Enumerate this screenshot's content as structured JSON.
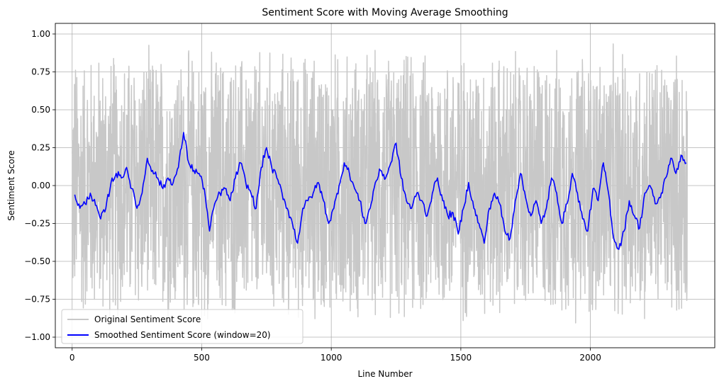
{
  "chart_data": {
    "type": "line",
    "title": "Sentiment Score with Moving Average Smoothing",
    "xlabel": "Line Number",
    "ylabel": "Sentiment Score",
    "xlim": [
      -65,
      2480
    ],
    "ylim": [
      -1.07,
      1.07
    ],
    "xticks": [
      0,
      500,
      1000,
      1500,
      2000
    ],
    "yticks": [
      -1.0,
      -0.75,
      -0.5,
      -0.25,
      0.0,
      0.25,
      0.5,
      0.75,
      1.0
    ],
    "xtick_labels": [
      "0",
      "500",
      "1000",
      "1500",
      "2000"
    ],
    "ytick_labels": [
      "−1.00",
      "−0.75",
      "−0.50",
      "−0.25",
      "0.00",
      "0.25",
      "0.50",
      "0.75",
      "1.00"
    ],
    "grid": true,
    "legend_position": "lower-left",
    "series": [
      {
        "name": "Original Sentiment Score",
        "color": "#c8c8c8",
        "n_points": 2375,
        "value_range": [
          -0.97,
          0.96
        ]
      },
      {
        "name": "Smoothed Sentiment Score (window=20)",
        "color": "#0000ff",
        "window": 20,
        "x": [
          10,
          30,
          50,
          70,
          90,
          110,
          130,
          150,
          170,
          190,
          210,
          230,
          250,
          270,
          290,
          310,
          330,
          350,
          370,
          390,
          410,
          430,
          450,
          470,
          490,
          510,
          530,
          550,
          570,
          590,
          610,
          630,
          650,
          670,
          690,
          710,
          730,
          750,
          770,
          790,
          810,
          830,
          850,
          870,
          890,
          910,
          930,
          950,
          970,
          990,
          1010,
          1030,
          1050,
          1070,
          1090,
          1110,
          1130,
          1150,
          1170,
          1190,
          1210,
          1230,
          1250,
          1270,
          1290,
          1310,
          1330,
          1350,
          1370,
          1390,
          1410,
          1430,
          1450,
          1470,
          1490,
          1510,
          1530,
          1550,
          1570,
          1590,
          1610,
          1630,
          1650,
          1670,
          1690,
          1710,
          1730,
          1750,
          1770,
          1790,
          1810,
          1830,
          1850,
          1870,
          1890,
          1910,
          1930,
          1950,
          1970,
          1990,
          2010,
          2030,
          2050,
          2070,
          2090,
          2110,
          2130,
          2150,
          2170,
          2190,
          2210,
          2230,
          2250,
          2270,
          2290,
          2310,
          2330,
          2350,
          2370
        ],
        "values": [
          -0.06,
          -0.15,
          -0.12,
          -0.05,
          -0.13,
          -0.22,
          -0.15,
          0.02,
          0.08,
          0.05,
          0.12,
          -0.02,
          -0.15,
          -0.05,
          0.18,
          0.1,
          0.05,
          -0.02,
          0.05,
          0.02,
          0.12,
          0.35,
          0.15,
          0.1,
          0.08,
          -0.02,
          -0.3,
          -0.12,
          -0.05,
          -0.02,
          -0.1,
          0.05,
          0.15,
          0.02,
          -0.05,
          -0.15,
          0.12,
          0.25,
          0.12,
          0.05,
          -0.05,
          -0.15,
          -0.25,
          -0.38,
          -0.15,
          -0.1,
          -0.05,
          0.02,
          -0.1,
          -0.25,
          -0.15,
          0.0,
          0.15,
          0.08,
          -0.02,
          -0.1,
          -0.25,
          -0.15,
          0.02,
          0.1,
          0.05,
          0.15,
          0.28,
          0.05,
          -0.1,
          -0.15,
          -0.05,
          -0.1,
          -0.2,
          -0.05,
          0.05,
          -0.1,
          -0.2,
          -0.18,
          -0.32,
          -0.15,
          0.02,
          -0.15,
          -0.25,
          -0.38,
          -0.15,
          -0.05,
          -0.12,
          -0.3,
          -0.35,
          -0.1,
          0.08,
          -0.08,
          -0.2,
          -0.1,
          -0.25,
          -0.15,
          0.05,
          -0.05,
          -0.25,
          -0.12,
          0.08,
          -0.05,
          -0.22,
          -0.3,
          -0.02,
          -0.1,
          0.15,
          -0.05,
          -0.35,
          -0.42,
          -0.3,
          -0.1,
          -0.2,
          -0.28,
          -0.05,
          0.0,
          -0.12,
          -0.08,
          0.05,
          0.18,
          0.08,
          0.2,
          0.15
        ]
      }
    ]
  }
}
